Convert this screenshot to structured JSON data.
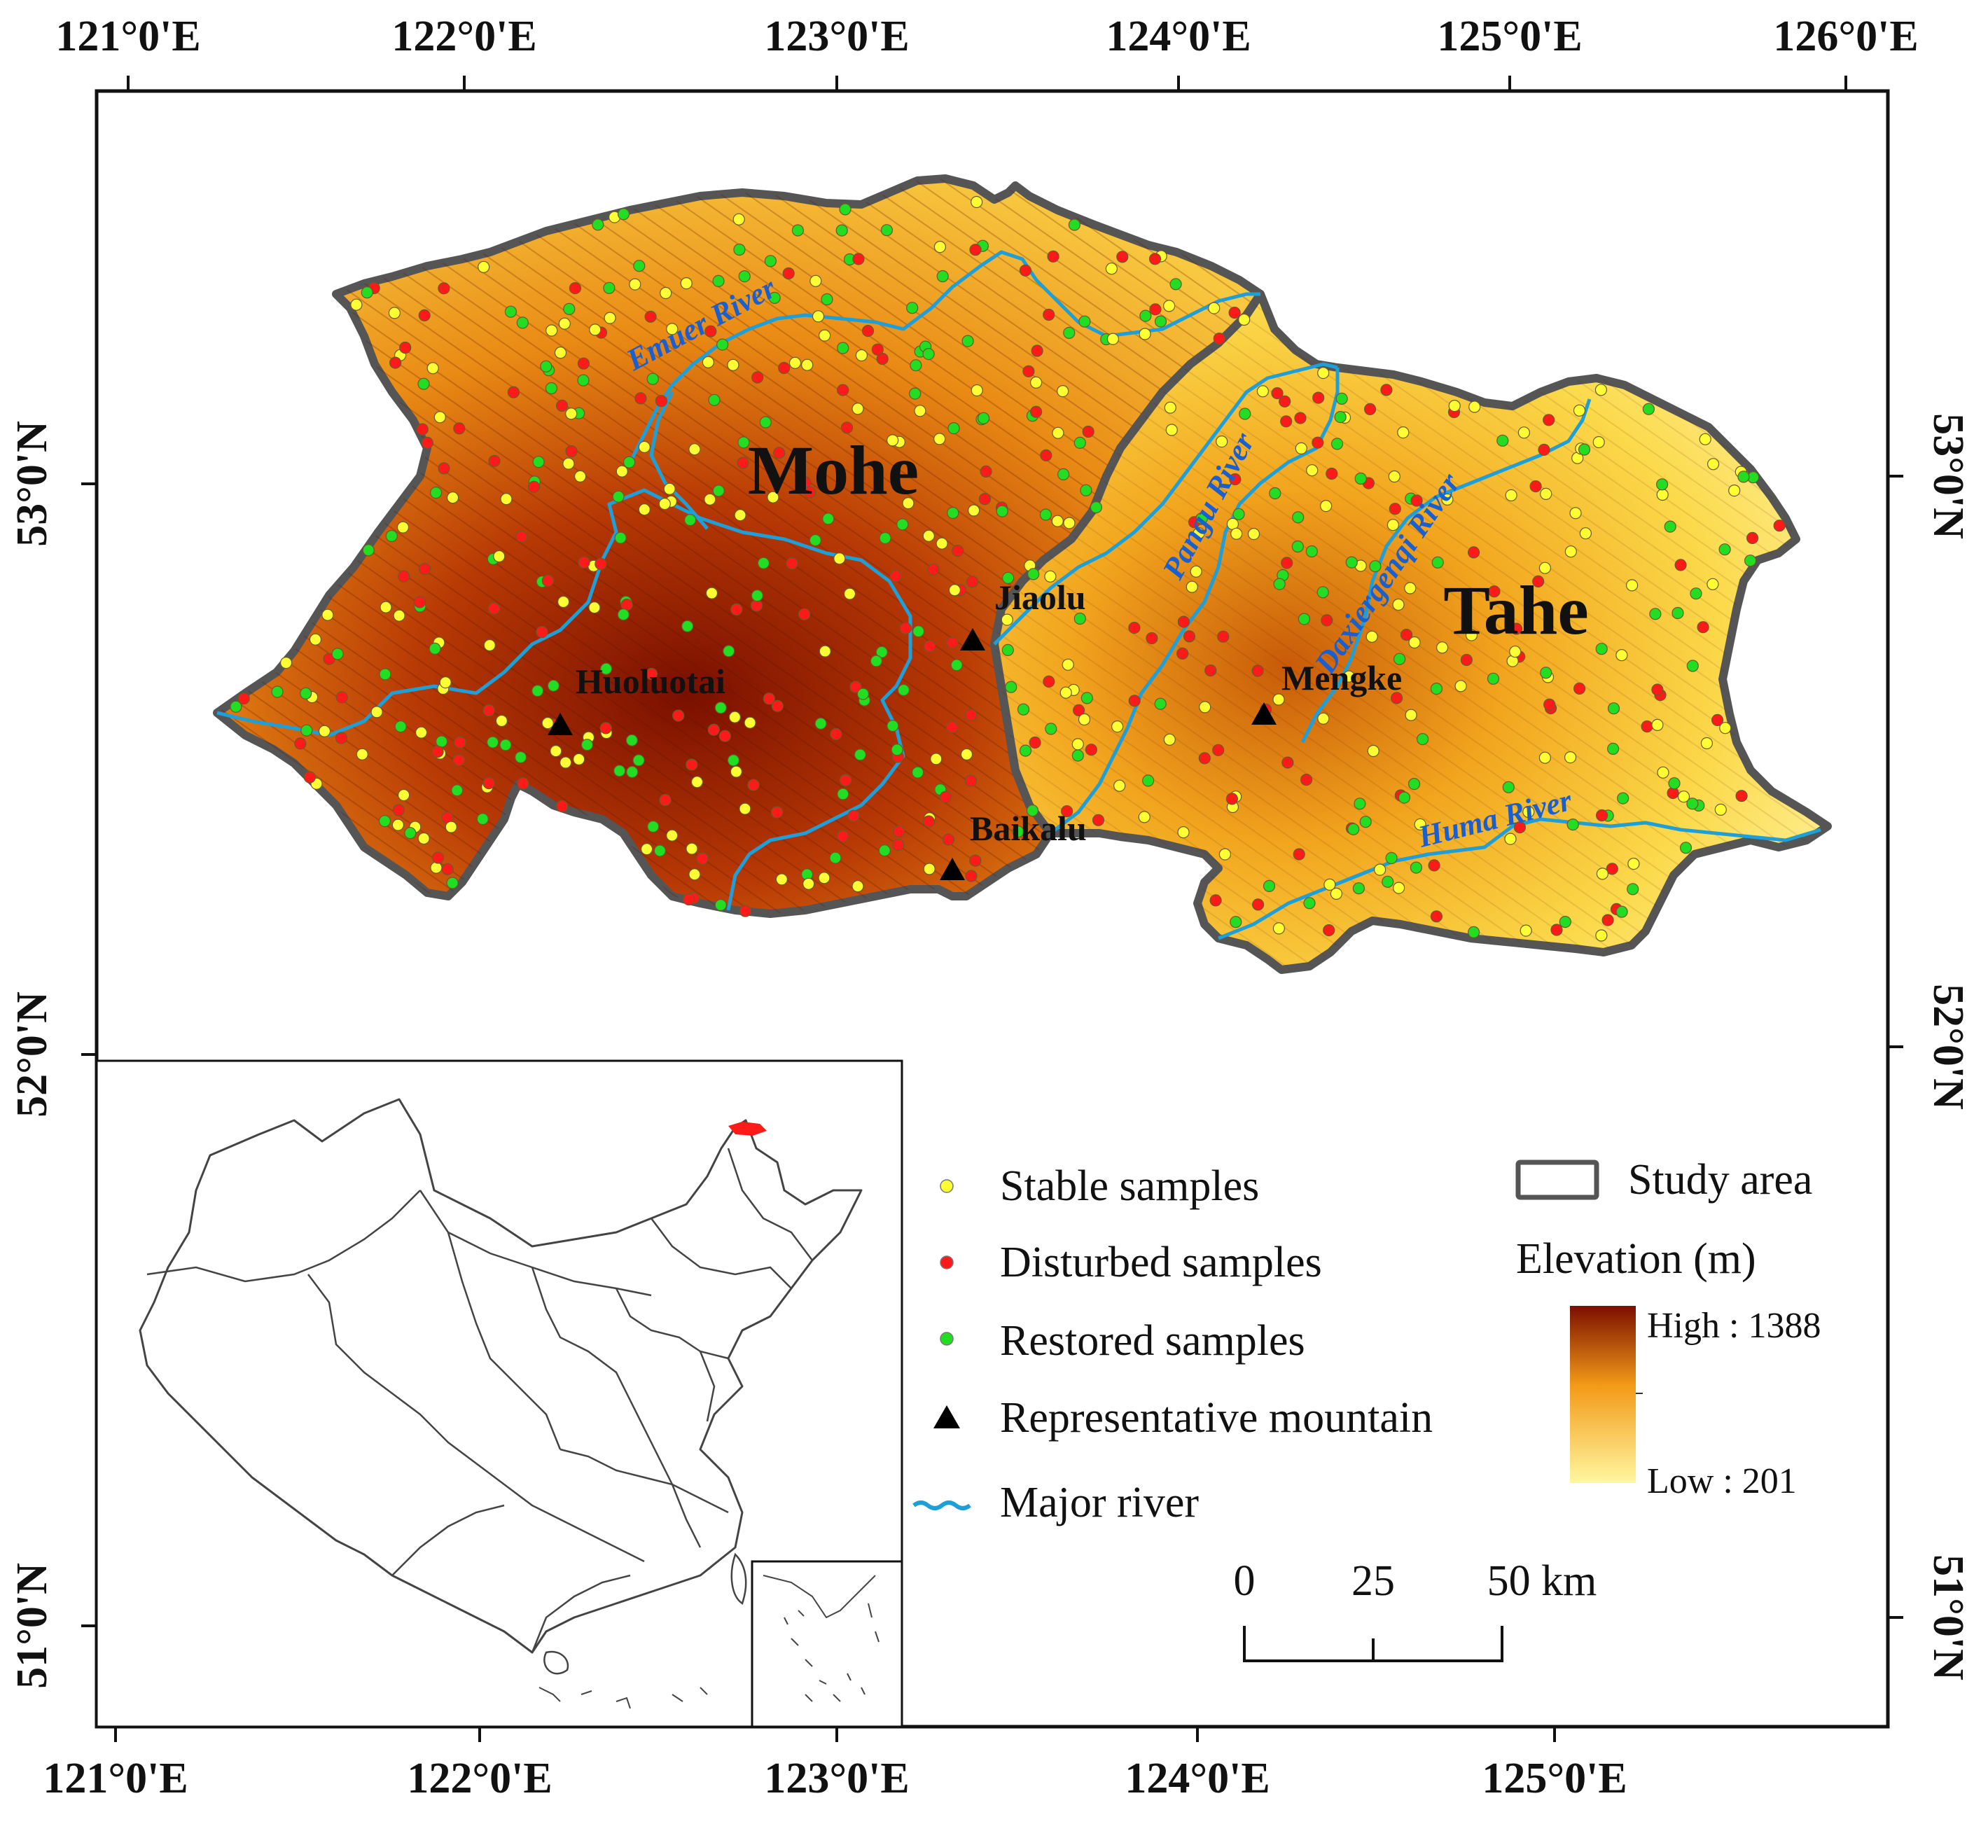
{
  "axes": {
    "top_lon": [
      "121°0'E",
      "122°0'E",
      "123°0'E",
      "124°0'E",
      "125°0'E",
      "126°0'E"
    ],
    "bottom_lon": [
      "121°0'E",
      "122°0'E",
      "123°0'E",
      "124°0'E",
      "125°0'E"
    ],
    "left_lat": [
      "53°0'N",
      "52°0'N",
      "51°0'N"
    ],
    "right_lat": [
      "53°0'N",
      "52°0'N",
      "51°0'N"
    ]
  },
  "regions": {
    "mohe": "Mohe",
    "tahe": "Tahe"
  },
  "rivers": {
    "emuer": "Emuer River",
    "pangu": "Pangu River",
    "daxiergenqi": "Daxiergenqi River",
    "huma": "Huma River"
  },
  "mountains": {
    "huoluotai": "Huoluotai",
    "jiaolu": "Jiaolu",
    "mengke": "Mengke",
    "baikalu": "Baikalu"
  },
  "legend": {
    "stable": "Stable samples",
    "disturbed": "Disturbed samples",
    "restored": "Restored samples",
    "mountain": "Representative mountain",
    "river": "Major river",
    "study_area": "Study area",
    "elevation_title": "Elevation (m)",
    "elevation_high": "High : 1388",
    "elevation_low": "Low : 201"
  },
  "scale_bar": {
    "t0": "0",
    "t25": "25",
    "t50": "50 km"
  },
  "colors": {
    "stable": "#ffff33",
    "disturbed": "#ff1a1a",
    "restored": "#22dd22",
    "river": "#1f9fd8",
    "boundary": "#555555",
    "elev_high": "#7a0f00",
    "elev_mid": "#f39a18",
    "elev_low": "#fff7a0"
  }
}
